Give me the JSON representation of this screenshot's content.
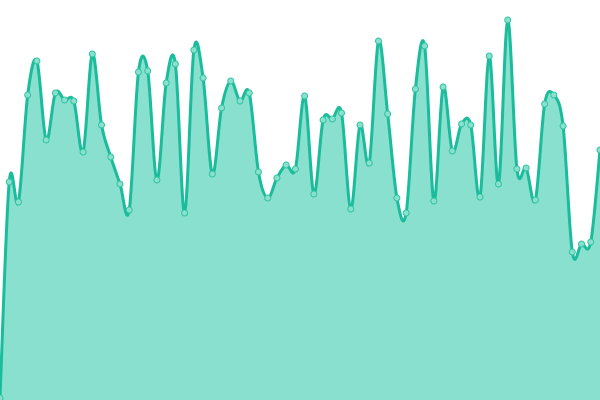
{
  "chart_data": {
    "type": "area",
    "title": "",
    "xlabel": "",
    "ylabel": "",
    "ylim": [
      0,
      400
    ],
    "grid": false,
    "legend": "none",
    "smooth": true,
    "markers": true,
    "colors": {
      "line": "#1abc9c",
      "fill": "#8ae0ce",
      "marker_fill": "#8ae0ce",
      "marker_stroke": "#2ec4a0"
    },
    "series": [
      {
        "values": [
          2,
          218,
          198,
          305,
          339,
          260,
          307,
          300,
          299,
          248,
          346,
          275,
          243,
          216,
          190,
          328,
          329,
          220,
          317,
          336,
          187,
          350,
          322,
          226,
          292,
          319,
          299,
          307,
          228,
          202,
          222,
          235,
          231,
          304,
          206,
          280,
          281,
          287,
          191,
          275,
          237,
          359,
          286,
          202,
          187,
          311,
          354,
          199,
          313,
          249,
          276,
          275,
          203,
          344,
          216,
          380,
          231,
          232,
          200,
          296,
          305,
          274,
          148,
          156,
          158,
          250
        ]
      }
    ]
  }
}
